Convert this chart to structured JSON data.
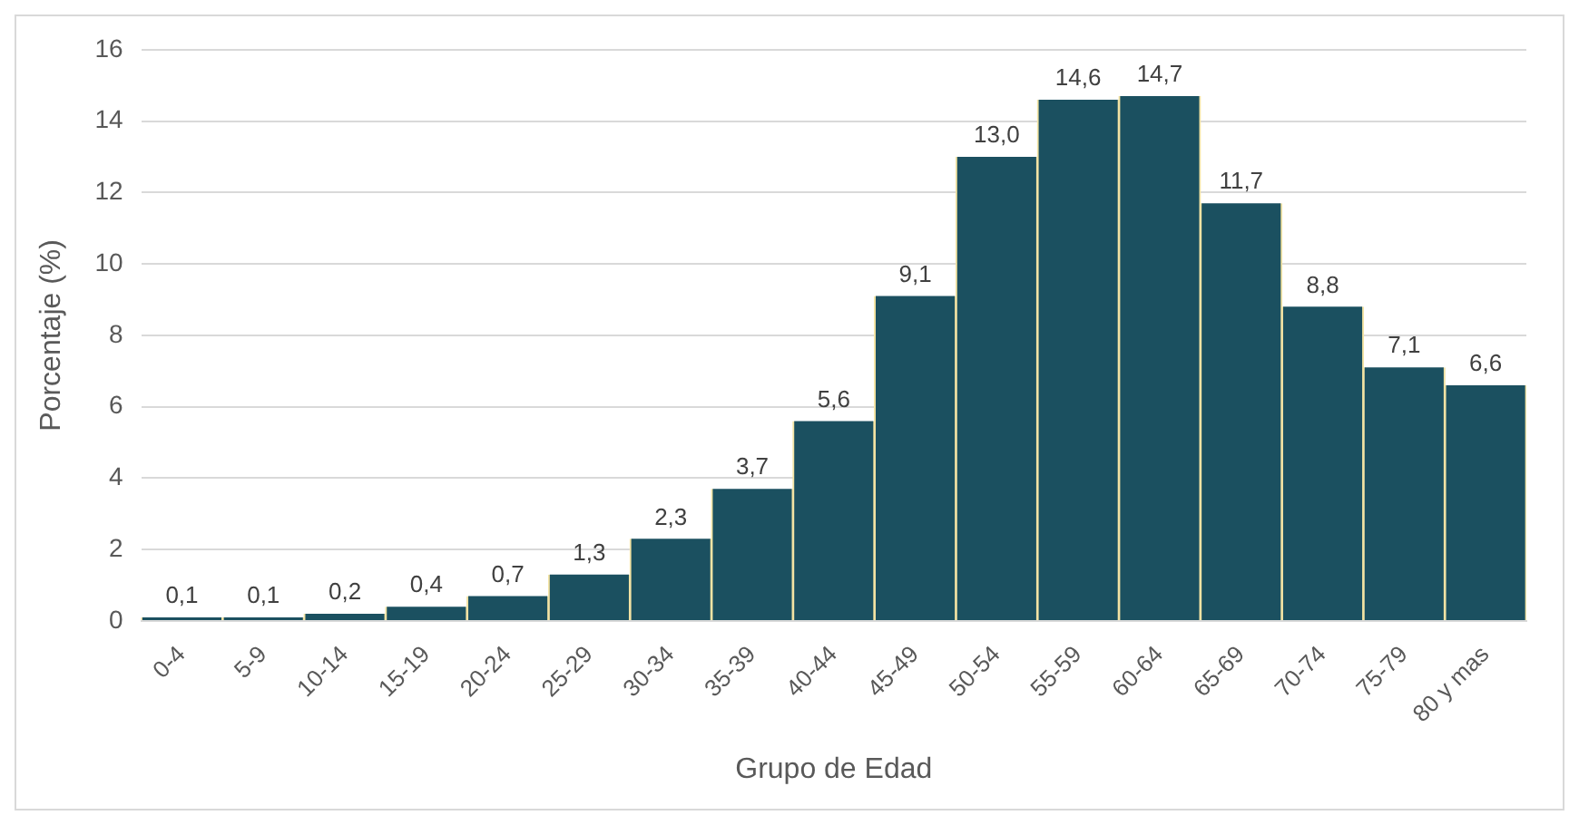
{
  "chart_data": {
    "type": "bar",
    "xlabel": "Grupo de Edad",
    "ylabel": "Porcentaje (%)",
    "categories": [
      "0-4",
      "5-9",
      "10-14",
      "15-19",
      "20-24",
      "25-29",
      "30-34",
      "35-39",
      "40-44",
      "45-49",
      "50-54",
      "55-59",
      "60-64",
      "65-69",
      "70-74",
      "75-79",
      "80 y mas"
    ],
    "values": [
      0.1,
      0.1,
      0.2,
      0.4,
      0.7,
      1.3,
      2.3,
      3.7,
      5.6,
      9.1,
      13.0,
      14.6,
      14.7,
      11.7,
      8.8,
      7.1,
      6.6
    ],
    "value_labels": [
      "0,1",
      "0,1",
      "0,2",
      "0,4",
      "0,7",
      "1,3",
      "2,3",
      "3,7",
      "5,6",
      "9,1",
      "13,0",
      "14,6",
      "14,7",
      "11,7",
      "8,8",
      "7,1",
      "6,6"
    ],
    "color": "#1b5060",
    "ylim": [
      0,
      16
    ],
    "yticks": [
      0,
      2,
      4,
      6,
      8,
      10,
      12,
      14,
      16
    ],
    "grid": "y"
  }
}
